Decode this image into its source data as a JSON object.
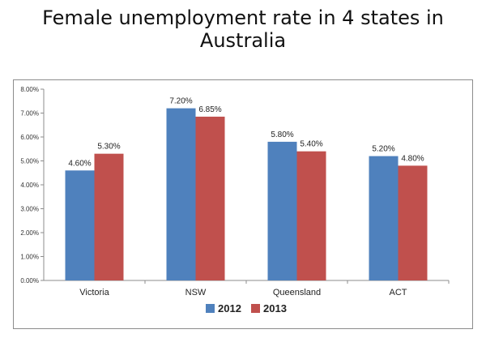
{
  "chart_data": {
    "type": "bar",
    "title": "Female unemployment rate in 4 states in Australia",
    "categories": [
      "Victoria",
      "NSW",
      "Queensland",
      "ACT"
    ],
    "series": [
      {
        "name": "2012",
        "values": [
          4.6,
          7.2,
          5.8,
          5.2
        ],
        "labels": [
          "4.60%",
          "7.20%",
          "5.80%",
          "5.20%"
        ],
        "color": "#4f81bd"
      },
      {
        "name": "2013",
        "values": [
          5.3,
          6.85,
          5.4,
          4.8
        ],
        "labels": [
          "5.30%",
          "6.85%",
          "5.40%",
          "4.80%"
        ],
        "color": "#c0504d"
      }
    ],
    "y_ticks": [
      "0.00%",
      "1.00%",
      "2.00%",
      "3.00%",
      "4.00%",
      "5.00%",
      "6.00%",
      "7.00%",
      "8.00%"
    ],
    "ylim": [
      0,
      8
    ],
    "grid": false,
    "legend_position": "bottom"
  }
}
